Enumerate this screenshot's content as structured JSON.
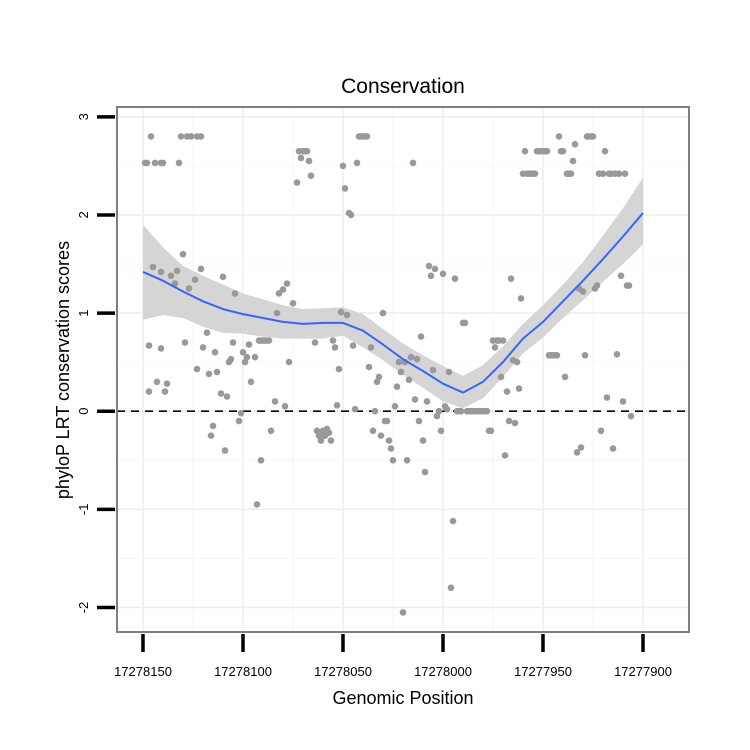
{
  "chart_data": {
    "type": "scatter",
    "title": "Conservation",
    "xlabel": "Genomic Position",
    "ylabel": "phyloP LRT conservation scores",
    "x_reversed": true,
    "xlim": [
      17278163,
      17277877
    ],
    "ylim": [
      -2.25,
      3.1
    ],
    "x_ticks": [
      17278150,
      17278100,
      17278050,
      17278000,
      17277950,
      17277900
    ],
    "x_tick_labels": [
      "17278150",
      "17278100",
      "17278050",
      "17278000",
      "17277950",
      "17277900"
    ],
    "y_ticks": [
      -2,
      -1,
      0,
      1,
      2,
      3
    ],
    "y_tick_labels": [
      "-2",
      "-1",
      "0",
      "1",
      "2",
      "3"
    ],
    "reference_line": {
      "y": 0,
      "style": "dashed"
    },
    "colors": {
      "points": "#999999",
      "smooth": "#3366ff",
      "band": "#d3d3d3",
      "grid": "#eeeeee",
      "panel_border": "#7f7f7f",
      "refline": "#000000"
    },
    "points": [
      [
        17278149,
        2.53
      ],
      [
        17278148,
        2.53
      ],
      [
        17278146,
        2.8
      ],
      [
        17278144,
        2.53
      ],
      [
        17278141,
        2.53
      ],
      [
        17278140,
        2.53
      ],
      [
        17278132,
        2.53
      ],
      [
        17278131,
        2.8
      ],
      [
        17278128,
        2.8
      ],
      [
        17278126,
        2.8
      ],
      [
        17278123,
        2.8
      ],
      [
        17278121,
        2.8
      ],
      [
        17278147,
        0.67
      ],
      [
        17278147,
        0.2
      ],
      [
        17278145,
        1.47
      ],
      [
        17278143,
        0.3
      ],
      [
        17278141,
        1.42
      ],
      [
        17278141,
        0.64
      ],
      [
        17278139,
        0.2
      ],
      [
        17278138,
        0.28
      ],
      [
        17278136,
        1.38
      ],
      [
        17278134,
        1.3
      ],
      [
        17278133,
        1.43
      ],
      [
        17278130,
        1.6
      ],
      [
        17278129,
        0.7
      ],
      [
        17278127,
        1.25
      ],
      [
        17278124,
        1.34
      ],
      [
        17278123,
        0.43
      ],
      [
        17278121,
        1.45
      ],
      [
        17278120,
        0.65
      ],
      [
        17278118,
        0.8
      ],
      [
        17278117,
        0.38
      ],
      [
        17278116,
        -0.25
      ],
      [
        17278115,
        -0.15
      ],
      [
        17278114,
        0.6
      ],
      [
        17278113,
        0.4
      ],
      [
        17278111,
        0.18
      ],
      [
        17278110,
        1.37
      ],
      [
        17278109,
        -0.4
      ],
      [
        17278108,
        0.15
      ],
      [
        17278107,
        0.5
      ],
      [
        17278106,
        0.53
      ],
      [
        17278105,
        0.7
      ],
      [
        17278104,
        1.2
      ],
      [
        17278102,
        -0.1
      ],
      [
        17278101,
        -0.02
      ],
      [
        17278100,
        0.6
      ],
      [
        17278099,
        0.5
      ],
      [
        17278098,
        0.55
      ],
      [
        17278097,
        0.68
      ],
      [
        17278096,
        0.3
      ],
      [
        17278094,
        0.55
      ],
      [
        17278092,
        0.72
      ],
      [
        17278091,
        0.72
      ],
      [
        17278090,
        0.72
      ],
      [
        17278089,
        0.72
      ],
      [
        17278088,
        0.72
      ],
      [
        17278087,
        0.72
      ],
      [
        17278093,
        -0.95
      ],
      [
        17278091,
        -0.5
      ],
      [
        17278086,
        -0.2
      ],
      [
        17278084,
        0.1
      ],
      [
        17278083,
        1.0
      ],
      [
        17278082,
        1.2
      ],
      [
        17278080,
        1.24
      ],
      [
        17278079,
        0.05
      ],
      [
        17278078,
        1.3
      ],
      [
        17278077,
        0.5
      ],
      [
        17278075,
        1.1
      ],
      [
        17278073,
        2.33
      ],
      [
        17278072,
        2.65
      ],
      [
        17278071,
        2.58
      ],
      [
        17278070,
        2.65
      ],
      [
        17278069,
        2.65
      ],
      [
        17278068,
        2.65
      ],
      [
        17278067,
        2.55
      ],
      [
        17278066,
        2.4
      ],
      [
        17278064,
        0.7
      ],
      [
        17278063,
        -0.2
      ],
      [
        17278062,
        -0.25
      ],
      [
        17278061,
        -0.3
      ],
      [
        17278060,
        -0.2
      ],
      [
        17278059,
        -0.25
      ],
      [
        17278058,
        -0.18
      ],
      [
        17278057,
        -0.22
      ],
      [
        17278056,
        -0.3
      ],
      [
        17278055,
        0.72
      ],
      [
        17278054,
        0.65
      ],
      [
        17278053,
        0.06
      ],
      [
        17278052,
        0.43
      ],
      [
        17278051,
        1.01
      ],
      [
        17278050,
        2.5
      ],
      [
        17278049,
        2.27
      ],
      [
        17278048,
        0.98
      ],
      [
        17278047,
        2.02
      ],
      [
        17278046,
        2.0
      ],
      [
        17278045,
        0.67
      ],
      [
        17278044,
        0.02
      ],
      [
        17278043,
        2.53
      ],
      [
        17278042,
        2.8
      ],
      [
        17278041,
        2.8
      ],
      [
        17278040,
        2.8
      ],
      [
        17278039,
        2.8
      ],
      [
        17278038,
        2.8
      ],
      [
        17278037,
        0.45
      ],
      [
        17278036,
        0.65
      ],
      [
        17278035,
        -0.2
      ],
      [
        17278034,
        0.0
      ],
      [
        17278033,
        0.3
      ],
      [
        17278032,
        0.35
      ],
      [
        17278031,
        -0.25
      ],
      [
        17278030,
        1.0
      ],
      [
        17278029,
        -0.1
      ],
      [
        17278028,
        -0.1
      ],
      [
        17278027,
        -0.3
      ],
      [
        17278026,
        -0.38
      ],
      [
        17278025,
        -0.5
      ],
      [
        17278024,
        0.05
      ],
      [
        17278023,
        0.25
      ],
      [
        17278022,
        0.5
      ],
      [
        17278021,
        0.4
      ],
      [
        17278020,
        -2.05
      ],
      [
        17278019,
        0.5
      ],
      [
        17278018,
        -0.5
      ],
      [
        17278017,
        0.32
      ],
      [
        17278016,
        0.55
      ],
      [
        17278015,
        2.53
      ],
      [
        17278014,
        0.12
      ],
      [
        17278013,
        0.53
      ],
      [
        17278012,
        -0.1
      ],
      [
        17278011,
        0.76
      ],
      [
        17278010,
        -0.3
      ],
      [
        17278009,
        -0.62
      ],
      [
        17278008,
        0.1
      ],
      [
        17278007,
        1.48
      ],
      [
        17278006,
        1.38
      ],
      [
        17278005,
        0.42
      ],
      [
        17278004,
        1.45
      ],
      [
        17278003,
        -0.05
      ],
      [
        17278002,
        0.0
      ],
      [
        17278001,
        -0.2
      ],
      [
        17278000,
        1.4
      ],
      [
        17277999,
        0.05
      ],
      [
        17277998,
        0.02
      ],
      [
        17277997,
        0.4
      ],
      [
        17277996,
        -1.8
      ],
      [
        17277995,
        -1.12
      ],
      [
        17277994,
        1.35
      ],
      [
        17277993,
        0.0
      ],
      [
        17277992,
        0.0
      ],
      [
        17277991,
        0.0
      ],
      [
        17277990,
        0.9
      ],
      [
        17277989,
        0.9
      ],
      [
        17277988,
        0.0
      ],
      [
        17277987,
        0.0
      ],
      [
        17277986,
        0.0
      ],
      [
        17277985,
        0.0
      ],
      [
        17277984,
        0.0
      ],
      [
        17277983,
        0.0
      ],
      [
        17277982,
        0.0
      ],
      [
        17277981,
        0.0
      ],
      [
        17277980,
        0.0
      ],
      [
        17277979,
        0.0
      ],
      [
        17277978,
        0.0
      ],
      [
        17277977,
        -0.2
      ],
      [
        17277976,
        -0.2
      ],
      [
        17277975,
        0.72
      ],
      [
        17277974,
        0.65
      ],
      [
        17277973,
        0.72
      ],
      [
        17277972,
        0.72
      ],
      [
        17277971,
        0.35
      ],
      [
        17277970,
        0.72
      ],
      [
        17277969,
        -0.45
      ],
      [
        17277968,
        0.2
      ],
      [
        17277967,
        -0.1
      ],
      [
        17277966,
        1.35
      ],
      [
        17277965,
        0.52
      ],
      [
        17277964,
        -0.12
      ],
      [
        17277963,
        0.5
      ],
      [
        17277962,
        0.23
      ],
      [
        17277961,
        1.15
      ],
      [
        17277960,
        2.42
      ],
      [
        17277959,
        2.65
      ],
      [
        17277958,
        2.42
      ],
      [
        17277957,
        2.42
      ],
      [
        17277956,
        2.42
      ],
      [
        17277955,
        2.42
      ],
      [
        17277954,
        2.42
      ],
      [
        17277953,
        2.65
      ],
      [
        17277952,
        2.65
      ],
      [
        17277951,
        2.65
      ],
      [
        17277950,
        2.65
      ],
      [
        17277949,
        2.65
      ],
      [
        17277948,
        2.65
      ],
      [
        17277947,
        0.57
      ],
      [
        17277946,
        0.57
      ],
      [
        17277945,
        0.57
      ],
      [
        17277944,
        0.57
      ],
      [
        17277943,
        0.57
      ],
      [
        17277942,
        2.8
      ],
      [
        17277941,
        2.65
      ],
      [
        17277940,
        2.65
      ],
      [
        17277939,
        0.35
      ],
      [
        17277938,
        2.42
      ],
      [
        17277937,
        2.42
      ],
      [
        17277936,
        2.42
      ],
      [
        17277935,
        2.55
      ],
      [
        17277934,
        2.72
      ],
      [
        17277933,
        -0.42
      ],
      [
        17277932,
        1.25
      ],
      [
        17277931,
        -0.37
      ],
      [
        17277930,
        1.22
      ],
      [
        17277929,
        0.57
      ],
      [
        17277928,
        2.8
      ],
      [
        17277927,
        2.8
      ],
      [
        17277926,
        2.8
      ],
      [
        17277925,
        2.8
      ],
      [
        17277924,
        1.25
      ],
      [
        17277923,
        1.28
      ],
      [
        17277922,
        2.42
      ],
      [
        17277921,
        -0.2
      ],
      [
        17277920,
        2.42
      ],
      [
        17277919,
        2.65
      ],
      [
        17277918,
        0.14
      ],
      [
        17277917,
        2.42
      ],
      [
        17277916,
        2.42
      ],
      [
        17277915,
        -0.38
      ],
      [
        17277914,
        2.42
      ],
      [
        17277913,
        0.58
      ],
      [
        17277912,
        2.42
      ],
      [
        17277911,
        1.38
      ],
      [
        17277910,
        0.1
      ],
      [
        17277909,
        2.42
      ],
      [
        17277908,
        1.28
      ],
      [
        17277907,
        1.28
      ],
      [
        17277906,
        -0.05
      ]
    ],
    "smooth_line": [
      [
        17278150,
        1.42
      ],
      [
        17278140,
        1.33
      ],
      [
        17278130,
        1.22
      ],
      [
        17278120,
        1.12
      ],
      [
        17278110,
        1.04
      ],
      [
        17278100,
        0.99
      ],
      [
        17278090,
        0.95
      ],
      [
        17278080,
        0.91
      ],
      [
        17278070,
        0.89
      ],
      [
        17278060,
        0.9
      ],
      [
        17278050,
        0.9
      ],
      [
        17278040,
        0.82
      ],
      [
        17278030,
        0.68
      ],
      [
        17278020,
        0.53
      ],
      [
        17278010,
        0.41
      ],
      [
        17278000,
        0.28
      ],
      [
        17277990,
        0.19
      ],
      [
        17277980,
        0.3
      ],
      [
        17277970,
        0.5
      ],
      [
        17277960,
        0.74
      ],
      [
        17277950,
        0.91
      ],
      [
        17277940,
        1.12
      ],
      [
        17277930,
        1.33
      ],
      [
        17277920,
        1.55
      ],
      [
        17277910,
        1.78
      ],
      [
        17277900,
        2.02
      ]
    ],
    "confidence_band": [
      [
        17278150,
        0.93,
        1.9
      ],
      [
        17278140,
        0.98,
        1.67
      ],
      [
        17278130,
        0.95,
        1.48
      ],
      [
        17278120,
        0.86,
        1.38
      ],
      [
        17278110,
        0.8,
        1.29
      ],
      [
        17278100,
        0.79,
        1.2
      ],
      [
        17278090,
        0.76,
        1.14
      ],
      [
        17278080,
        0.74,
        1.08
      ],
      [
        17278070,
        0.74,
        1.04
      ],
      [
        17278060,
        0.74,
        1.05
      ],
      [
        17278050,
        0.77,
        1.06
      ],
      [
        17278040,
        0.65,
        0.99
      ],
      [
        17278030,
        0.52,
        0.84
      ],
      [
        17278020,
        0.37,
        0.69
      ],
      [
        17278010,
        0.24,
        0.57
      ],
      [
        17278000,
        0.1,
        0.46
      ],
      [
        17277990,
        0.03,
        0.36
      ],
      [
        17277980,
        0.13,
        0.47
      ],
      [
        17277970,
        0.35,
        0.66
      ],
      [
        17277960,
        0.59,
        0.89
      ],
      [
        17277950,
        0.75,
        1.08
      ],
      [
        17277940,
        0.95,
        1.29
      ],
      [
        17277930,
        1.13,
        1.52
      ],
      [
        17277920,
        1.32,
        1.79
      ],
      [
        17277910,
        1.5,
        2.07
      ],
      [
        17277900,
        1.7,
        2.38
      ]
    ]
  }
}
